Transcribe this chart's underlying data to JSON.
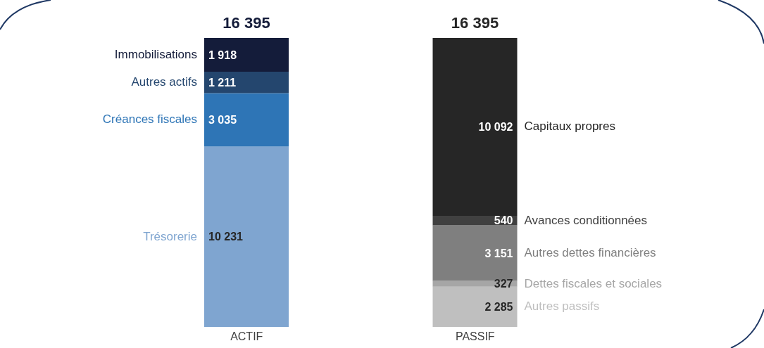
{
  "chart_data": {
    "type": "bar",
    "stacked": true,
    "categories": [
      "ACTIF",
      "PASSIF"
    ],
    "series": [
      {
        "name": "Trésorerie",
        "color": "#7fa5d0",
        "values": [
          10231,
          null
        ],
        "value_labels": [
          "10 231",
          null
        ]
      },
      {
        "name": "Créances fiscales",
        "color": "#2e75b6",
        "values": [
          3035,
          null
        ],
        "value_labels": [
          "3 035",
          null
        ]
      },
      {
        "name": "Autres actifs",
        "color": "#24466e",
        "values": [
          1211,
          null
        ],
        "value_labels": [
          "1 211",
          null
        ]
      },
      {
        "name": "Immobilisations",
        "color": "#141c3a",
        "values": [
          1918,
          null
        ],
        "value_labels": [
          "1 918",
          null
        ]
      },
      {
        "name": "Autres passifs",
        "color": "#bfbfbf",
        "values": [
          null,
          2285
        ],
        "value_labels": [
          null,
          "2 285"
        ]
      },
      {
        "name": "Dettes fiscales et sociales",
        "color": "#a6a6a6",
        "values": [
          null,
          327
        ],
        "value_labels": [
          null,
          "327"
        ]
      },
      {
        "name": "Autres dettes financières",
        "color": "#7f7f7f",
        "values": [
          null,
          3151
        ],
        "value_labels": [
          null,
          "3 151"
        ]
      },
      {
        "name": "Avances conditionnées",
        "color": "#404040",
        "values": [
          null,
          540
        ],
        "value_labels": [
          null,
          "540"
        ]
      },
      {
        "name": "Capitaux propres",
        "color": "#262626",
        "values": [
          null,
          10092
        ],
        "value_labels": [
          null,
          "10 092"
        ]
      }
    ],
    "totals": [
      "16 395",
      "16 395"
    ],
    "grid": false,
    "legend": false
  }
}
